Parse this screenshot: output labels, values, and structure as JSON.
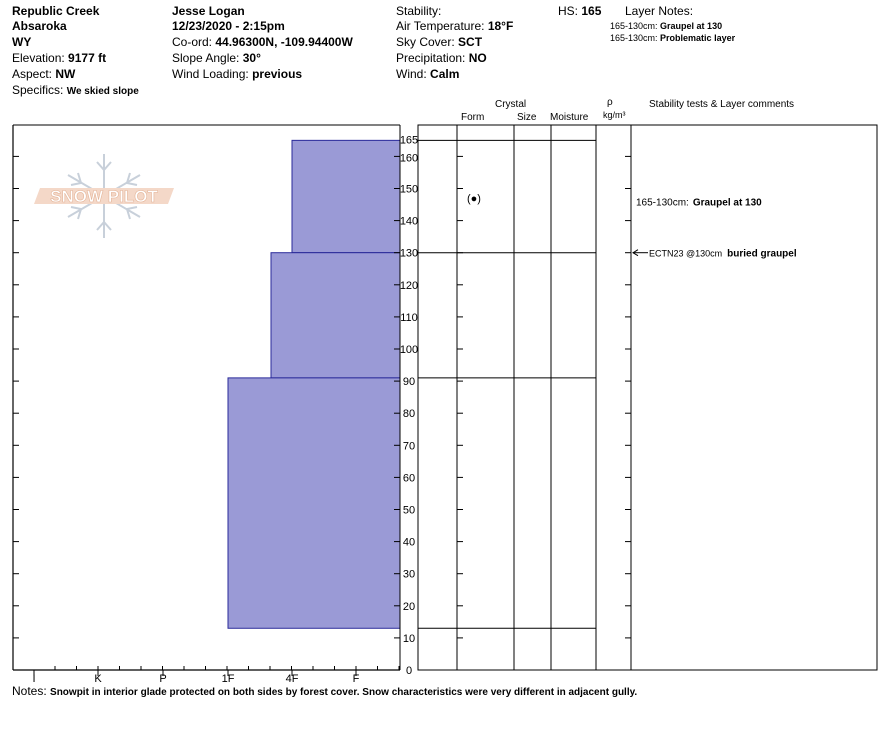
{
  "header": {
    "location": "Republic Creek",
    "range": "Absaroka",
    "state": "WY",
    "elevation_label": "Elevation:",
    "elevation_value": "9177 ft",
    "aspect_label": "Aspect:",
    "aspect_value": "NW",
    "specifics_label": "Specifics:",
    "specifics_value": "We skied slope",
    "observer": "Jesse Logan",
    "datetime": "12/23/2020 - 2:15pm",
    "coord_label": "Co-ord:",
    "coord_value": "44.96300N, -109.94400W",
    "slope_label": "Slope Angle:",
    "slope_value": "30°",
    "wind_loading_label": "Wind Loading:",
    "wind_loading_value": "previous",
    "stability_label": "Stability:",
    "stability_value": "",
    "air_temp_label": "Air Temperature:",
    "air_temp_value": "18°F",
    "sky_label": "Sky Cover:",
    "sky_value": "SCT",
    "precip_label": "Precipitation:",
    "precip_value": "NO",
    "wind_label": "Wind:",
    "wind_value": "Calm",
    "hs_label": "HS:",
    "hs_value": "165",
    "layer_notes_label": "Layer Notes:",
    "layer_notes": [
      {
        "range": "165-130cm:",
        "note": "Graupel at 130"
      },
      {
        "range": "165-130cm:",
        "note": "Problematic layer"
      }
    ]
  },
  "logo": {
    "text": "SNOW PILOT"
  },
  "columns": {
    "crystal": "Crystal",
    "form": "Form",
    "size": "Size",
    "moisture": "Moisture",
    "rho": "ρ",
    "density_unit": "kg/m³",
    "stability_comments": "Stability tests & Layer comments"
  },
  "comments": [
    {
      "height": 146,
      "range": "165-130cm:",
      "text": "Graupel at 130"
    }
  ],
  "stability_tests": [
    {
      "height": 130,
      "label": "ECTN23 @130cm",
      "text": "buried graupel"
    }
  ],
  "crystal_forms": [
    {
      "height": 147,
      "symbol": "(●)"
    }
  ],
  "notes_label": "Notes:",
  "notes_text": "Snowpit in interior glade protected on both sides by forest cover. Snow characteristics were very different in adjacent gully.",
  "colors": {
    "hardness_fill": "#9a9ad6",
    "hardness_stroke": "#2a2a9a"
  },
  "chart_data": {
    "type": "bar",
    "title": "",
    "ylabel": "",
    "ylim": [
      0,
      165
    ],
    "y_ticks": [
      0,
      10,
      20,
      30,
      40,
      50,
      60,
      70,
      80,
      90,
      100,
      110,
      120,
      130,
      140,
      150,
      160,
      165
    ],
    "hardness_scale": [
      "I",
      "K",
      "P",
      "1F",
      "4F",
      "F"
    ],
    "layers": [
      {
        "top": 165,
        "bottom": 130,
        "hardness": "4F"
      },
      {
        "top": 130,
        "bottom": 91,
        "hardness": "4F-"
      },
      {
        "top": 91,
        "bottom": 13,
        "hardness": "1F"
      }
    ],
    "layer_boundaries": [
      165,
      130,
      91,
      13
    ]
  }
}
